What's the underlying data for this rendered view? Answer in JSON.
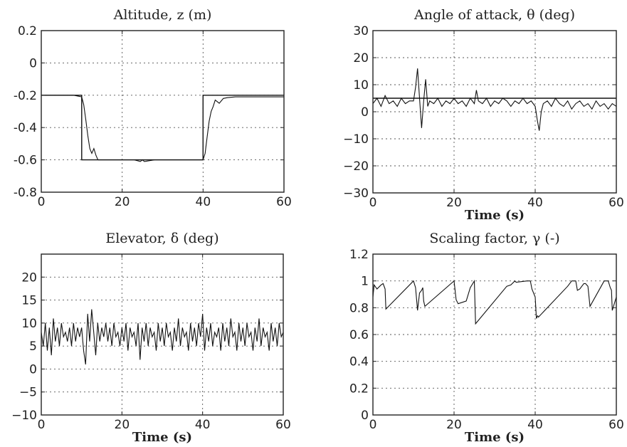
{
  "chart_data": [
    {
      "type": "line",
      "title": "Altitude, z (m)",
      "xlabel": "",
      "ylabel": "",
      "xlim": [
        0,
        60
      ],
      "ylim": [
        -0.8,
        0.2
      ],
      "xticks": [
        "0",
        "20",
        "40",
        "60"
      ],
      "yticks": [
        "0.2",
        "0",
        "-0.2",
        "-0.4",
        "-0.6",
        "-0.8"
      ],
      "grid": true,
      "series": [
        {
          "role": "reference",
          "x": [
            0,
            10,
            10,
            40,
            40,
            60
          ],
          "y": [
            -0.2,
            -0.2,
            -0.6,
            -0.6,
            -0.2,
            -0.2
          ]
        },
        {
          "role": "response",
          "x": [
            0,
            8,
            10,
            10.5,
            11,
            11.5,
            12,
            12.5,
            13,
            13.5,
            14,
            15,
            17,
            20,
            23,
            24.5,
            25,
            25.5,
            28,
            32,
            36,
            40,
            40.5,
            41,
            41.5,
            42,
            42.5,
            43,
            44,
            45,
            46,
            48,
            52,
            56,
            60
          ],
          "y": [
            -0.2,
            -0.2,
            -0.21,
            -0.26,
            -0.35,
            -0.45,
            -0.53,
            -0.56,
            -0.53,
            -0.57,
            -0.6,
            -0.6,
            -0.6,
            -0.6,
            -0.6,
            -0.61,
            -0.6,
            -0.61,
            -0.6,
            -0.6,
            -0.6,
            -0.6,
            -0.56,
            -0.46,
            -0.36,
            -0.3,
            -0.27,
            -0.23,
            -0.25,
            -0.22,
            -0.215,
            -0.21,
            -0.21,
            -0.21,
            -0.21
          ]
        }
      ]
    },
    {
      "type": "line",
      "title": "Angle of attack, θ (deg)",
      "xlabel": "Time (s)",
      "ylabel": "",
      "xlim": [
        0,
        60
      ],
      "ylim": [
        -30,
        30
      ],
      "xticks": [
        "0",
        "20",
        "40",
        "60"
      ],
      "yticks": [
        "30",
        "20",
        "10",
        "0",
        "−10",
        "−20",
        "−30"
      ],
      "grid": true,
      "series": [
        {
          "role": "reference",
          "x": [
            0,
            60
          ],
          "y": [
            5,
            5
          ]
        },
        {
          "role": "response",
          "x": [
            0,
            1,
            2,
            3,
            4,
            5,
            6,
            7,
            8,
            9,
            10,
            10.5,
            11,
            11.5,
            12,
            12.5,
            13,
            13.5,
            14,
            15,
            16,
            17,
            18,
            19,
            20,
            21,
            22,
            23,
            24,
            25,
            25.5,
            26,
            27,
            28,
            29,
            30,
            31,
            32,
            33,
            34,
            35,
            36,
            37,
            38,
            39,
            40,
            40.5,
            41,
            41.5,
            42,
            43,
            44,
            45,
            46,
            47,
            48,
            49,
            50,
            51,
            52,
            53,
            54,
            55,
            56,
            57,
            58,
            59,
            60
          ],
          "y": [
            3,
            5,
            2,
            6,
            3,
            4,
            2,
            5,
            3,
            4,
            4,
            9,
            16,
            5,
            -6,
            4,
            12,
            2,
            4,
            3,
            5,
            2,
            4,
            3,
            5,
            3,
            4,
            2,
            5,
            3,
            8,
            4,
            3,
            5,
            2,
            4,
            3,
            5,
            4,
            2,
            4,
            3,
            5,
            3,
            4,
            2,
            -3,
            -7,
            0,
            3,
            4,
            2,
            5,
            3,
            2,
            4,
            1,
            3,
            4,
            2,
            3,
            1,
            4,
            2,
            3,
            1,
            3,
            2
          ]
        }
      ]
    },
    {
      "type": "line",
      "title": "Elevator, δ (deg)",
      "xlabel": "Time (s)",
      "ylabel": "",
      "xlim": [
        0,
        60
      ],
      "ylim": [
        -10,
        25
      ],
      "xticks": [
        "0",
        "20",
        "40",
        "60"
      ],
      "yticks": [
        "20",
        "15",
        "10",
        "5",
        "0",
        "−5",
        "−10"
      ],
      "grid": true,
      "series": [
        {
          "role": "response",
          "x": [
            0,
            0.5,
            1,
            1.5,
            2,
            2.5,
            3,
            3.5,
            4,
            4.5,
            5,
            5.5,
            6,
            6.5,
            7,
            7.5,
            8,
            8.5,
            9,
            9.5,
            10,
            10.5,
            11,
            11.5,
            12,
            12.5,
            13,
            13.5,
            14,
            14.5,
            15,
            15.5,
            16,
            16.5,
            17,
            17.5,
            18,
            18.5,
            19,
            19.5,
            20,
            20.5,
            21,
            21.5,
            22,
            22.5,
            23,
            23.5,
            24,
            24.5,
            25,
            25.5,
            26,
            26.5,
            27,
            27.5,
            28,
            28.5,
            29,
            29.5,
            30,
            30.5,
            31,
            31.5,
            32,
            32.5,
            33,
            33.5,
            34,
            34.5,
            35,
            35.5,
            36,
            36.5,
            37,
            37.5,
            38,
            38.5,
            39,
            39.5,
            40,
            40.5,
            41,
            41.5,
            42,
            42.5,
            43,
            43.5,
            44,
            44.5,
            45,
            45.5,
            46,
            46.5,
            47,
            47.5,
            48,
            48.5,
            49,
            49.5,
            50,
            50.5,
            51,
            51.5,
            52,
            52.5,
            53,
            53.5,
            54,
            54.5,
            55,
            55.5,
            56,
            56.5,
            57,
            57.5,
            58,
            58.5,
            59,
            59.5,
            60
          ],
          "y": [
            8,
            5,
            10,
            4,
            9,
            3,
            11,
            6,
            9,
            5,
            10,
            7,
            8,
            6,
            9,
            5,
            10,
            6,
            9,
            7,
            9,
            4,
            1,
            12,
            6,
            13,
            8,
            3,
            10,
            6,
            9,
            7,
            10,
            6,
            9,
            5,
            10,
            7,
            8,
            5,
            9,
            6,
            10,
            4,
            9,
            7,
            8,
            5,
            10,
            2,
            9,
            6,
            10,
            5,
            9,
            7,
            8,
            4,
            10,
            6,
            9,
            5,
            10,
            7,
            8,
            4,
            9,
            6,
            11,
            5,
            9,
            7,
            8,
            4,
            10,
            6,
            9,
            5,
            10,
            7,
            12,
            4,
            9,
            6,
            10,
            5,
            8,
            7,
            9,
            4,
            10,
            6,
            9,
            5,
            11,
            7,
            8,
            4,
            10,
            6,
            9,
            5,
            10,
            7,
            8,
            4,
            9,
            6,
            11,
            5,
            9,
            7,
            8,
            4,
            10,
            6,
            9,
            5,
            10,
            7,
            8
          ]
        }
      ]
    },
    {
      "type": "line",
      "title": "Scaling factor, γ (-)",
      "xlabel": "Time (s)",
      "ylabel": "",
      "xlim": [
        0,
        60
      ],
      "ylim": [
        0,
        1.2
      ],
      "xticks": [
        "0",
        "20",
        "40",
        "60"
      ],
      "yticks": [
        "1.2",
        "1",
        "0.8",
        "0.6",
        "0.4",
        "0.2",
        "0"
      ],
      "grid": true,
      "series": [
        {
          "role": "response",
          "x": [
            0,
            0.3,
            1,
            2,
            2.5,
            3,
            3.2,
            10,
            10.5,
            11,
            11.5,
            12,
            12.3,
            12.5,
            12.8,
            20,
            20.5,
            21,
            23,
            24,
            25,
            25.3,
            33,
            34,
            35,
            35.3,
            38,
            38.8,
            39.2,
            40,
            40.3,
            40.6,
            40.8,
            48,
            49,
            50,
            50.4,
            51,
            51.5,
            52,
            52.4,
            53,
            53.5,
            57,
            58,
            58.5,
            58.8,
            59,
            60
          ],
          "y": [
            0.88,
            0.97,
            0.94,
            0.97,
            0.98,
            0.94,
            0.79,
            1.0,
            0.95,
            0.78,
            0.91,
            0.93,
            0.95,
            0.85,
            0.81,
            1.0,
            0.86,
            0.83,
            0.85,
            0.95,
            1.0,
            0.68,
            0.96,
            0.97,
            1.0,
            0.99,
            1.0,
            1.0,
            0.94,
            0.88,
            0.72,
            0.74,
            0.73,
            0.96,
            1.0,
            1.0,
            0.93,
            0.94,
            0.96,
            0.98,
            0.98,
            0.96,
            0.81,
            1.0,
            1.0,
            0.95,
            0.93,
            0.78,
            0.88
          ]
        }
      ]
    }
  ]
}
